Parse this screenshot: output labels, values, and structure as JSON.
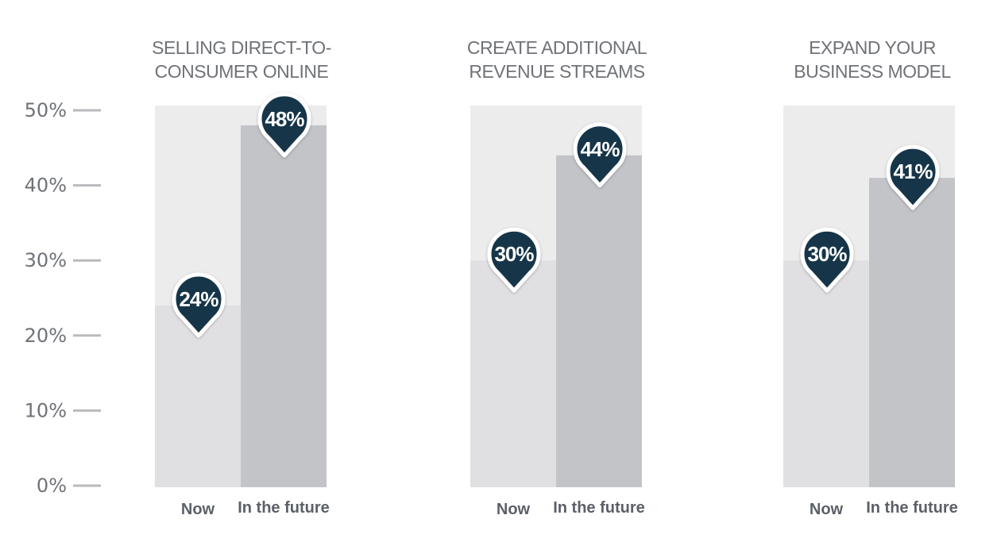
{
  "chart_data": [
    {
      "type": "bar",
      "title": [
        "SELLING DIRECT-TO-",
        "CONSUMER ONLINE"
      ],
      "categories": [
        "Now",
        "In the future"
      ],
      "values": [
        24,
        48
      ],
      "value_labels": [
        "24%",
        "48%"
      ],
      "ylim": [
        0,
        50
      ]
    },
    {
      "type": "bar",
      "title": [
        "CREATE ADDITIONAL",
        "REVENUE STREAMS"
      ],
      "categories": [
        "Now",
        "In the future"
      ],
      "values": [
        30,
        44
      ],
      "value_labels": [
        "30%",
        "44%"
      ],
      "ylim": [
        0,
        50
      ]
    },
    {
      "type": "bar",
      "title": [
        "EXPAND YOUR",
        "BUSINESS MODEL"
      ],
      "categories": [
        "Now",
        "In the future"
      ],
      "values": [
        30,
        41
      ],
      "value_labels": [
        "30%",
        "41%"
      ],
      "ylim": [
        0,
        50
      ]
    }
  ],
  "y_axis": {
    "ticks": [
      0,
      10,
      20,
      30,
      40,
      50
    ],
    "tick_labels": [
      "0%",
      "10%",
      "20%",
      "30%",
      "40%",
      "50%"
    ]
  },
  "colors": {
    "background_area": "#ececed",
    "bar_now": "#e0e0e3",
    "bar_future": "#c3c4c8",
    "pin_fill": "#19344a",
    "pin_stroke": "#ffffff",
    "text": "#6f7277",
    "tick_line": "#b9babd"
  }
}
